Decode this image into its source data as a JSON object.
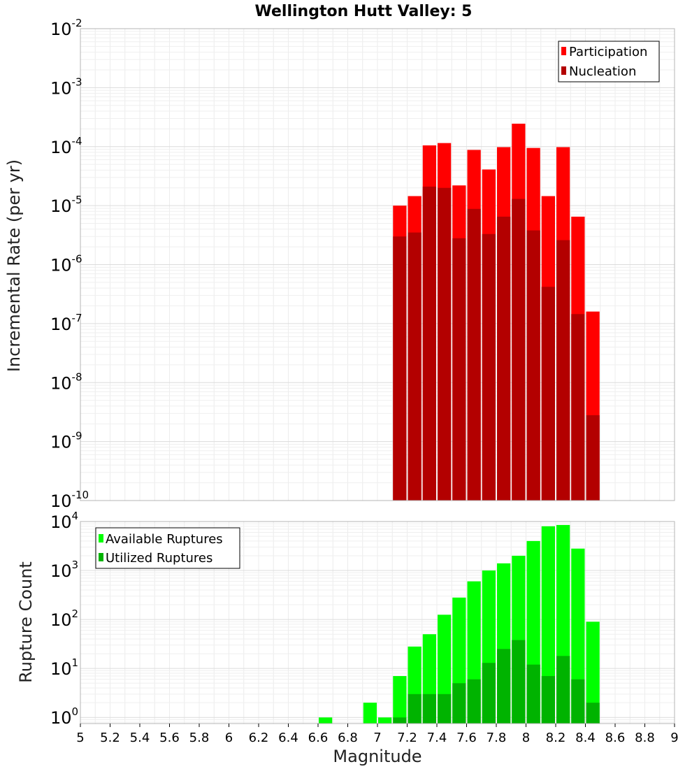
{
  "chart_data": [
    {
      "type": "bar",
      "title": "Wellington Hutt Valley: 5",
      "ylabel": "Incremental Rate (per yr)",
      "y_scale": "log",
      "ylim": [
        1e-10,
        0.01
      ],
      "xlim": [
        5,
        9
      ],
      "grid": true,
      "legend_position": "top-right",
      "bar_overlay": true,
      "x": [
        7.15,
        7.25,
        7.35,
        7.45,
        7.55,
        7.65,
        7.75,
        7.85,
        7.95,
        8.05,
        8.15,
        8.25,
        8.35,
        8.45
      ],
      "series": [
        {
          "name": "Participation",
          "color": "#ff0000",
          "values": [
            1e-05,
            1.45e-05,
            0.000105,
            0.000115,
            2.2e-05,
            8.8e-05,
            4.1e-05,
            9.8e-05,
            0.000245,
            9.5e-05,
            1.45e-05,
            9.8e-05,
            6.5e-06,
            1.6e-07
          ]
        },
        {
          "name": "Nucleation",
          "color": "#b30000",
          "values": [
            3e-06,
            3.5e-06,
            2.1e-05,
            2e-05,
            2.8e-06,
            8.8e-06,
            3.3e-06,
            6.5e-06,
            1.3e-05,
            3.8e-06,
            4.2e-07,
            2.6e-06,
            1.45e-07,
            2.8e-09
          ]
        }
      ]
    },
    {
      "type": "bar",
      "title": "",
      "ylabel": "Rupture Count",
      "xlabel": "Magnitude",
      "y_scale": "log",
      "ylim": [
        0.75,
        10000
      ],
      "xlim": [
        5,
        9
      ],
      "grid": true,
      "legend_position": "top-left",
      "bar_overlay": true,
      "x": [
        6.65,
        6.95,
        7.05,
        7.15,
        7.25,
        7.35,
        7.45,
        7.55,
        7.65,
        7.75,
        7.85,
        7.95,
        8.05,
        8.15,
        8.25,
        8.35,
        8.45
      ],
      "series": [
        {
          "name": "Available Ruptures",
          "color": "#00ff00",
          "values": [
            1,
            2,
            1,
            7,
            28,
            50,
            125,
            280,
            600,
            1000,
            1400,
            2000,
            4000,
            8000,
            8500,
            2800,
            90
          ]
        },
        {
          "name": "Utilized Ruptures",
          "color": "#00b300",
          "values": [
            0,
            0,
            0,
            1,
            3,
            3,
            3,
            5,
            6,
            13,
            25,
            38,
            12,
            7,
            18,
            6,
            2
          ]
        }
      ],
      "xticks": [
        "5",
        "5.2",
        "5.4",
        "5.6",
        "5.8",
        "6",
        "6.2",
        "6.4",
        "6.6",
        "6.8",
        "7",
        "7.2",
        "7.4",
        "7.6",
        "7.8",
        "8",
        "8.2",
        "8.4",
        "8.6",
        "8.8",
        "9"
      ]
    }
  ]
}
